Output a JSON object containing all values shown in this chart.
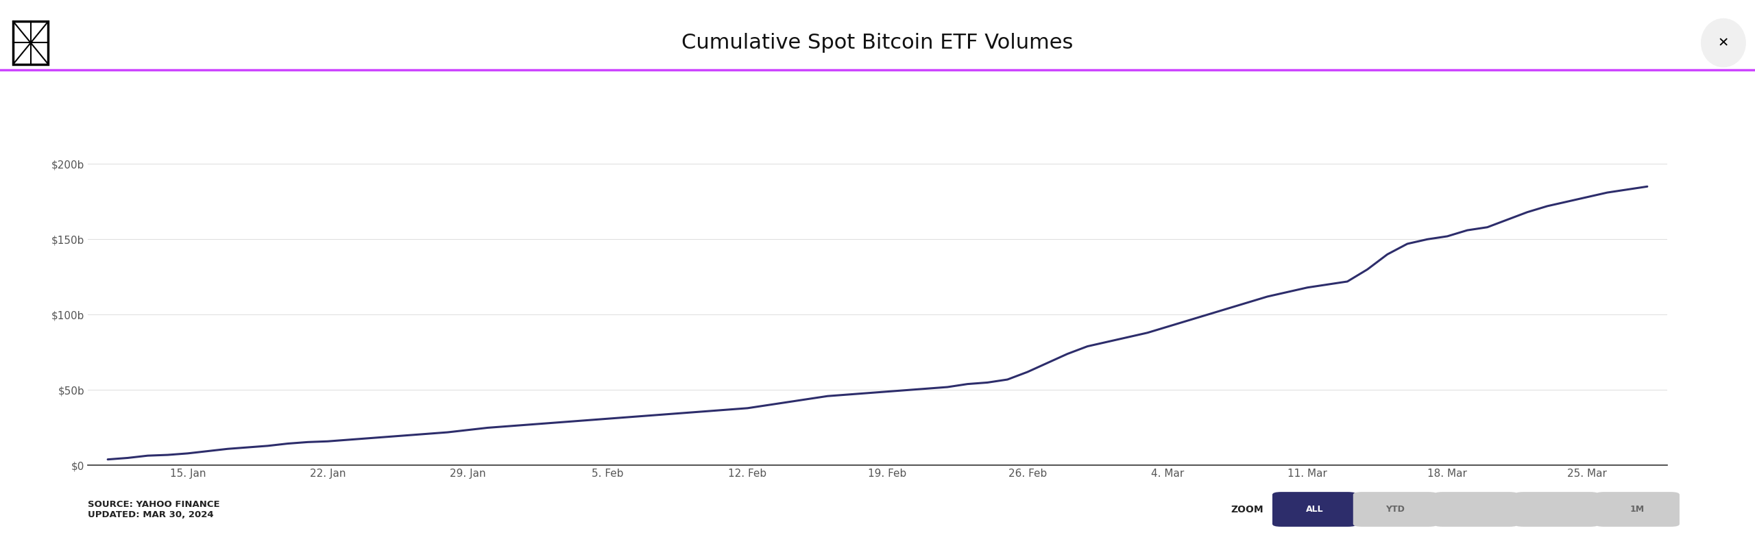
{
  "title": "Cumulative Spot Bitcoin ETF Volumes",
  "background_color": "#ffffff",
  "line_color": "#2d2d6b",
  "purple_line_color": "#cc44ff",
  "title_fontsize": 22,
  "ylabel_fontsize": 11,
  "xlabel_fontsize": 11,
  "source_text": "SOURCE: YAHOO FINANCE\nUPDATED: MAR 30, 2024",
  "zoom_label": "ZOOM",
  "zoom_buttons": [
    "ALL",
    "YTD",
    "",
    "",
    "1M"
  ],
  "zoom_active": "ALL",
  "zoom_active_color": "#2d2d6b",
  "zoom_inactive_color": "#cccccc",
  "ylim": [
    0,
    220000000000
  ],
  "yticks": [
    0,
    50000000000,
    100000000000,
    150000000000,
    200000000000
  ],
  "ytick_labels": [
    "$0",
    "$50b",
    "$100b",
    "$150b",
    "$200b"
  ],
  "xtick_labels": [
    "15. Jan",
    "22. Jan",
    "29. Jan",
    "5. Feb",
    "12. Feb",
    "19. Feb",
    "26. Feb",
    "4. Mar",
    "11. Mar",
    "18. Mar",
    "25. Mar"
  ],
  "x_values": [
    0,
    7,
    14,
    21,
    28,
    35,
    42,
    49,
    56,
    63,
    70,
    77
  ],
  "x_positions": [
    4,
    11,
    18,
    25,
    32,
    39,
    46,
    53,
    60,
    67,
    74
  ],
  "data_x": [
    0,
    1,
    2,
    3,
    4,
    5,
    6,
    7,
    8,
    9,
    10,
    11,
    12,
    13,
    14,
    15,
    16,
    17,
    18,
    19,
    20,
    21,
    22,
    23,
    24,
    25,
    26,
    27,
    28,
    29,
    30,
    31,
    32,
    33,
    34,
    35,
    36,
    37,
    38,
    39,
    40,
    41,
    42,
    43,
    44,
    45,
    46,
    47,
    48,
    49,
    50,
    51,
    52,
    53,
    54,
    55,
    56,
    57,
    58,
    59,
    60,
    61,
    62,
    63,
    64,
    65,
    66,
    67,
    68,
    69,
    70,
    71,
    72,
    73,
    74,
    75,
    76,
    77
  ],
  "data_y": [
    4000000000,
    5000000000,
    6500000000,
    7000000000,
    8000000000,
    9500000000,
    11000000000,
    12000000000,
    13000000000,
    14500000000,
    15500000000,
    16000000000,
    17000000000,
    18000000000,
    19000000000,
    20000000000,
    21000000000,
    22000000000,
    23500000000,
    25000000000,
    26000000000,
    27000000000,
    28000000000,
    29000000000,
    30000000000,
    31000000000,
    32000000000,
    33000000000,
    34000000000,
    35000000000,
    36000000000,
    37000000000,
    38000000000,
    40000000000,
    42000000000,
    44000000000,
    46000000000,
    47000000000,
    48000000000,
    49000000000,
    50000000000,
    51000000000,
    52000000000,
    54000000000,
    55000000000,
    57000000000,
    62000000000,
    68000000000,
    74000000000,
    79000000000,
    82000000000,
    85000000000,
    88000000000,
    92000000000,
    96000000000,
    100000000000,
    104000000000,
    108000000000,
    112000000000,
    115000000000,
    118000000000,
    120000000000,
    122000000000,
    130000000000,
    140000000000,
    147000000000,
    150000000000,
    152000000000,
    156000000000,
    158000000000,
    163000000000,
    168000000000,
    172000000000,
    175000000000,
    178000000000,
    181000000000,
    183000000000,
    185000000000
  ],
  "grid_color": "#e0e0e0",
  "axis_line_color": "#333333",
  "tick_color": "#555555"
}
